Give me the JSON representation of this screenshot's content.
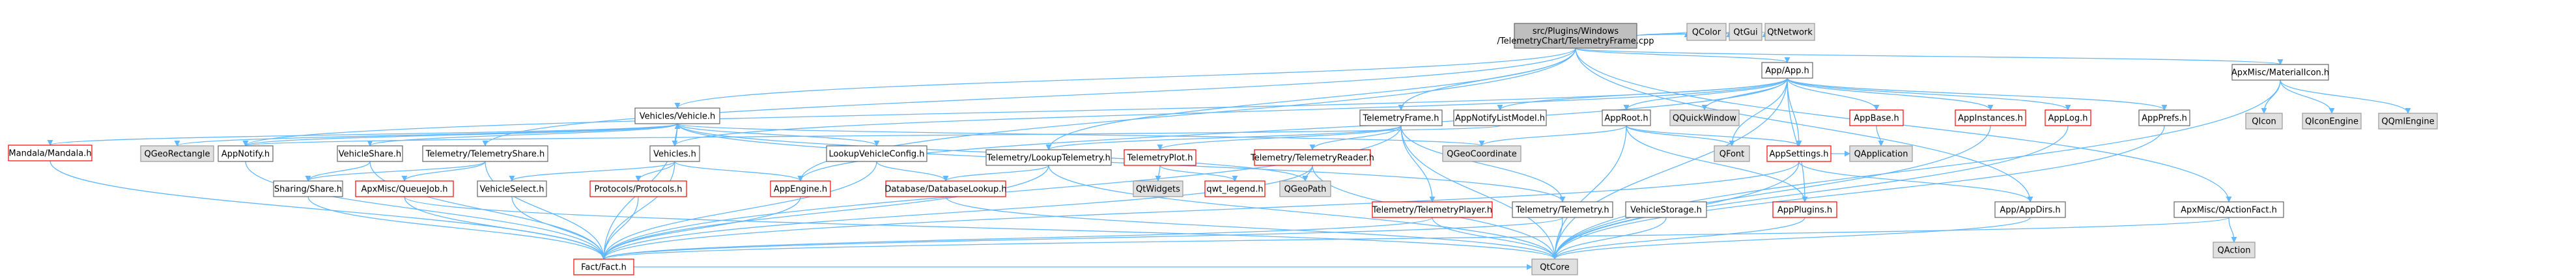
{
  "colors": {
    "root_fill": "#bfbfbf",
    "root_border": "#666666",
    "file_fill": "#ffffff",
    "file_border": "#666666",
    "undoc_border": "#ff0000",
    "external_fill": "#e0e0e0",
    "external_border": "#999999",
    "edge": "#63b8ff"
  },
  "nodes": [
    {
      "id": "root",
      "kind": "root",
      "lines": [
        "src/Plugins/Windows",
        "/TelemetryChart/TelemetryFrame.cpp"
      ]
    },
    {
      "id": "qcolor",
      "kind": "external",
      "lines": [
        "QColor"
      ]
    },
    {
      "id": "qtgui",
      "kind": "external",
      "lines": [
        "QtGui"
      ]
    },
    {
      "id": "qtnetwork",
      "kind": "external",
      "lines": [
        "QtNetwork"
      ]
    },
    {
      "id": "appapp",
      "kind": "file",
      "lines": [
        "App/App.h"
      ]
    },
    {
      "id": "materialicon",
      "kind": "file",
      "lines": [
        "ApxMisc/MaterialIcon.h"
      ]
    },
    {
      "id": "qicon",
      "kind": "external",
      "lines": [
        "QIcon"
      ]
    },
    {
      "id": "qiconengine",
      "kind": "external",
      "lines": [
        "QIconEngine"
      ]
    },
    {
      "id": "qqmlengine",
      "kind": "external",
      "lines": [
        "QQmlEngine"
      ]
    },
    {
      "id": "vehiclesvehicle",
      "kind": "file",
      "lines": [
        "Vehicles/Vehicle.h"
      ]
    },
    {
      "id": "telemetryframe",
      "kind": "file",
      "lines": [
        "TelemetryFrame.h"
      ]
    },
    {
      "id": "appnotifylistmodel",
      "kind": "file",
      "lines": [
        "AppNotifyListModel.h"
      ]
    },
    {
      "id": "approot",
      "kind": "file",
      "lines": [
        "AppRoot.h"
      ]
    },
    {
      "id": "qquickwindow",
      "kind": "external",
      "lines": [
        "QQuickWindow"
      ]
    },
    {
      "id": "appbase",
      "kind": "undoc",
      "lines": [
        "AppBase.h"
      ]
    },
    {
      "id": "appinstances",
      "kind": "undoc",
      "lines": [
        "AppInstances.h"
      ]
    },
    {
      "id": "applog",
      "kind": "undoc",
      "lines": [
        "AppLog.h"
      ]
    },
    {
      "id": "appprefs",
      "kind": "file",
      "lines": [
        "AppPrefs.h"
      ]
    },
    {
      "id": "mandala",
      "kind": "undoc",
      "lines": [
        "Mandala/Mandala.h"
      ]
    },
    {
      "id": "qgeorectangle",
      "kind": "external",
      "lines": [
        "QGeoRectangle"
      ]
    },
    {
      "id": "appnotify",
      "kind": "file",
      "lines": [
        "AppNotify.h"
      ]
    },
    {
      "id": "vehicleshare",
      "kind": "file",
      "lines": [
        "VehicleShare.h"
      ]
    },
    {
      "id": "telemetryshare",
      "kind": "file",
      "lines": [
        "Telemetry/TelemetryShare.h"
      ]
    },
    {
      "id": "vehicles",
      "kind": "file",
      "lines": [
        "Vehicles.h"
      ]
    },
    {
      "id": "lookupvehicleconfig",
      "kind": "file",
      "lines": [
        "LookupVehicleConfig.h"
      ]
    },
    {
      "id": "qgeocoordinate",
      "kind": "external",
      "lines": [
        "QGeoCoordinate"
      ]
    },
    {
      "id": "qfont",
      "kind": "external",
      "lines": [
        "QFont"
      ]
    },
    {
      "id": "appsettings",
      "kind": "undoc",
      "lines": [
        "AppSettings.h"
      ]
    },
    {
      "id": "qapplication",
      "kind": "external",
      "lines": [
        "QApplication"
      ]
    },
    {
      "id": "telemetrylookup",
      "kind": "file",
      "lines": [
        "Telemetry/LookupTelemetry.h"
      ]
    },
    {
      "id": "telemetryplot",
      "kind": "undoc",
      "lines": [
        "TelemetryPlot.h"
      ]
    },
    {
      "id": "telemetryreader",
      "kind": "undoc",
      "lines": [
        "Telemetry/TelemetryReader.h"
      ]
    },
    {
      "id": "sharing",
      "kind": "file",
      "lines": [
        "Sharing/Share.h"
      ]
    },
    {
      "id": "queuejob",
      "kind": "undoc",
      "lines": [
        "ApxMisc/QueueJob.h"
      ]
    },
    {
      "id": "vehicleselect",
      "kind": "file",
      "lines": [
        "VehicleSelect.h"
      ]
    },
    {
      "id": "protocols",
      "kind": "undoc",
      "lines": [
        "Protocols/Protocols.h"
      ]
    },
    {
      "id": "appengine",
      "kind": "undoc",
      "lines": [
        "AppEngine.h"
      ]
    },
    {
      "id": "dblookup",
      "kind": "undoc",
      "lines": [
        "Database/DatabaseLookup.h"
      ]
    },
    {
      "id": "qtwidgets",
      "kind": "external",
      "lines": [
        "QtWidgets"
      ]
    },
    {
      "id": "qwtlegend",
      "kind": "undoc",
      "lines": [
        "qwt_legend.h"
      ]
    },
    {
      "id": "qgeopath",
      "kind": "external",
      "lines": [
        "QGeoPath"
      ]
    },
    {
      "id": "telemetryplayer",
      "kind": "undoc",
      "lines": [
        "Telemetry/TelemetryPlayer.h"
      ]
    },
    {
      "id": "telemetrytelemetry",
      "kind": "file",
      "lines": [
        "Telemetry/Telemetry.h"
      ]
    },
    {
      "id": "vehiclestorage",
      "kind": "file",
      "lines": [
        "VehicleStorage.h"
      ]
    },
    {
      "id": "appplugins",
      "kind": "undoc",
      "lines": [
        "AppPlugins.h"
      ]
    },
    {
      "id": "appdirs",
      "kind": "file",
      "lines": [
        "App/AppDirs.h"
      ]
    },
    {
      "id": "qactionfact",
      "kind": "file",
      "lines": [
        "ApxMisc/QActionFact.h"
      ]
    },
    {
      "id": "qaction",
      "kind": "external",
      "lines": [
        "QAction"
      ]
    },
    {
      "id": "fact",
      "kind": "undoc",
      "lines": [
        "Fact/Fact.h"
      ]
    },
    {
      "id": "qtcore",
      "kind": "external",
      "lines": [
        "QtCore"
      ]
    }
  ],
  "edges": [
    [
      "root",
      "qcolor"
    ],
    [
      "root",
      "qtgui"
    ],
    [
      "root",
      "qtnetwork"
    ],
    [
      "root",
      "appapp"
    ],
    [
      "root",
      "materialicon"
    ],
    [
      "root",
      "vehiclesvehicle"
    ],
    [
      "root",
      "telemetryframe"
    ],
    [
      "root",
      "telemetryshare"
    ],
    [
      "root",
      "telemetrylookup"
    ],
    [
      "root",
      "appengine"
    ],
    [
      "root",
      "appdirs"
    ],
    [
      "root",
      "qactionfact"
    ],
    [
      "materialicon",
      "qicon"
    ],
    [
      "materialicon",
      "qiconengine"
    ],
    [
      "materialicon",
      "qqmlengine"
    ],
    [
      "materialicon",
      "qtcore"
    ],
    [
      "appapp",
      "appnotifylistmodel"
    ],
    [
      "appapp",
      "approot"
    ],
    [
      "appapp",
      "qquickwindow"
    ],
    [
      "appapp",
      "appbase"
    ],
    [
      "appapp",
      "appinstances"
    ],
    [
      "appapp",
      "applog"
    ],
    [
      "appapp",
      "appprefs"
    ],
    [
      "appapp",
      "appnotify"
    ],
    [
      "appapp",
      "vehicles"
    ],
    [
      "appapp",
      "qfont"
    ],
    [
      "appapp",
      "appsettings"
    ],
    [
      "appapp",
      "appplugins"
    ],
    [
      "appapp",
      "qtcore"
    ],
    [
      "appapp",
      "appengine"
    ],
    [
      "appbase",
      "qapplication"
    ],
    [
      "appinstances",
      "qtcore"
    ],
    [
      "applog",
      "qtcore"
    ],
    [
      "appprefs",
      "qtcore"
    ],
    [
      "approot",
      "qgeocoordinate"
    ],
    [
      "approot",
      "qfont"
    ],
    [
      "approot",
      "appsettings"
    ],
    [
      "approot",
      "appplugins"
    ],
    [
      "approot",
      "qtcore"
    ],
    [
      "appnotifylistmodel",
      "appnotify"
    ],
    [
      "appsettings",
      "qapplication"
    ],
    [
      "appsettings",
      "appdirs"
    ],
    [
      "appsettings",
      "qtcore"
    ],
    [
      "appsettings",
      "fact"
    ],
    [
      "appplugins",
      "qtcore"
    ],
    [
      "appdirs",
      "qtcore"
    ],
    [
      "vehiclesvehicle",
      "mandala"
    ],
    [
      "vehiclesvehicle",
      "qgeorectangle"
    ],
    [
      "vehiclesvehicle",
      "appnotify"
    ],
    [
      "vehiclesvehicle",
      "vehicleshare"
    ],
    [
      "vehiclesvehicle",
      "vehicles"
    ],
    [
      "vehiclesvehicle",
      "lookupvehicleconfig"
    ],
    [
      "vehiclesvehicle",
      "qgeocoordinate"
    ],
    [
      "vehiclesvehicle",
      "qgeopath"
    ],
    [
      "vehiclesvehicle",
      "fact"
    ],
    [
      "vehiclesvehicle",
      "telemetrytelemetry"
    ],
    [
      "vehicles",
      "vehiclesvehicle"
    ],
    [
      "vehicles",
      "vehicleselect"
    ],
    [
      "vehicles",
      "protocols"
    ],
    [
      "vehicles",
      "appengine"
    ],
    [
      "vehicles",
      "fact"
    ],
    [
      "mandala",
      "fact"
    ],
    [
      "appnotify",
      "fact"
    ],
    [
      "vehicleshare",
      "sharing"
    ],
    [
      "vehicleshare",
      "fact"
    ],
    [
      "lookupvehicleconfig",
      "dblookup"
    ],
    [
      "lookupvehicleconfig",
      "fact"
    ],
    [
      "telemetryframe",
      "telemetrylookup"
    ],
    [
      "telemetryframe",
      "telemetryplot"
    ],
    [
      "telemetryframe",
      "telemetryreader"
    ],
    [
      "telemetryframe",
      "telemetryplayer"
    ],
    [
      "telemetryframe",
      "telemetrytelemetry"
    ],
    [
      "telemetryframe",
      "fact"
    ],
    [
      "telemetryframe",
      "qtcore"
    ],
    [
      "telemetryshare",
      "sharing"
    ],
    [
      "telemetryshare",
      "queuejob"
    ],
    [
      "telemetryshare",
      "fact"
    ],
    [
      "telemetrylookup",
      "dblookup"
    ],
    [
      "telemetrylookup",
      "fact"
    ],
    [
      "telemetrylookup",
      "qtcore"
    ],
    [
      "telemetryplot",
      "qtwidgets"
    ],
    [
      "telemetryplot",
      "qwtlegend"
    ],
    [
      "telemetryreader",
      "qgeopath"
    ],
    [
      "telemetryreader",
      "fact"
    ],
    [
      "telemetryreader",
      "qtcore"
    ],
    [
      "telemetryplayer",
      "fact"
    ],
    [
      "telemetryplayer",
      "qtcore"
    ],
    [
      "telemetrytelemetry",
      "fact"
    ],
    [
      "telemetrytelemetry",
      "qtcore"
    ],
    [
      "vehiclestorage",
      "qtcore"
    ],
    [
      "sharing",
      "fact"
    ],
    [
      "queuejob",
      "fact"
    ],
    [
      "queuejob",
      "qtcore"
    ],
    [
      "vehicleselect",
      "fact"
    ],
    [
      "protocols",
      "fact"
    ],
    [
      "appengine",
      "fact"
    ],
    [
      "dblookup",
      "qtcore"
    ],
    [
      "qactionfact",
      "qaction"
    ],
    [
      "qactionfact",
      "fact"
    ],
    [
      "fact",
      "qtcore"
    ]
  ]
}
